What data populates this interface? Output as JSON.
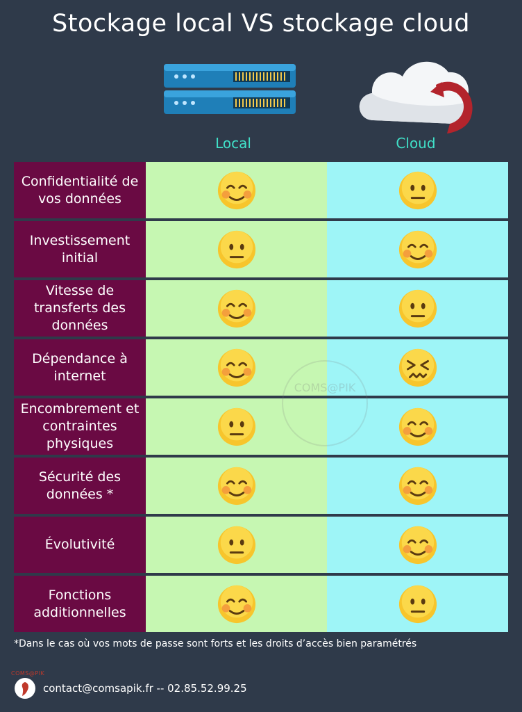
{
  "title": "Stockage local VS stockage cloud",
  "columns": {
    "local": "Local",
    "cloud": "Cloud"
  },
  "rows": [
    {
      "label": "Confidentialité de vos données",
      "local": "smiling",
      "cloud": "neutral"
    },
    {
      "label": "Investissement initial",
      "local": "neutral",
      "cloud": "smiling"
    },
    {
      "label": "Vitesse de transferts des données",
      "local": "smiling",
      "cloud": "neutral"
    },
    {
      "label": "Dépendance à internet",
      "local": "smiling",
      "cloud": "confounded"
    },
    {
      "label": "Encombrement et contraintes physiques",
      "local": "neutral",
      "cloud": "smiling"
    },
    {
      "label": "Sécurité des données *",
      "local": "smiling",
      "cloud": "smiling"
    },
    {
      "label": "Évolutivité",
      "local": "neutral",
      "cloud": "smiling"
    },
    {
      "label": "Fonctions additionnelles",
      "local": "smiling",
      "cloud": "neutral"
    }
  ],
  "footnote": "*Dans le cas où vos mots de passe sont forts et les droits d’accès bien paramétrés",
  "watermark": "COMS@PIK",
  "brand": "COMS@PIK",
  "contact": "contact@comsapik.fr -- 02.85.52.99.25",
  "colors": {
    "background": "#2f3a4a",
    "label_bg": "#6a0a43",
    "local_bg": "#c6f7b2",
    "cloud_bg": "#9ef5f7",
    "accent": "#40e0c8"
  }
}
